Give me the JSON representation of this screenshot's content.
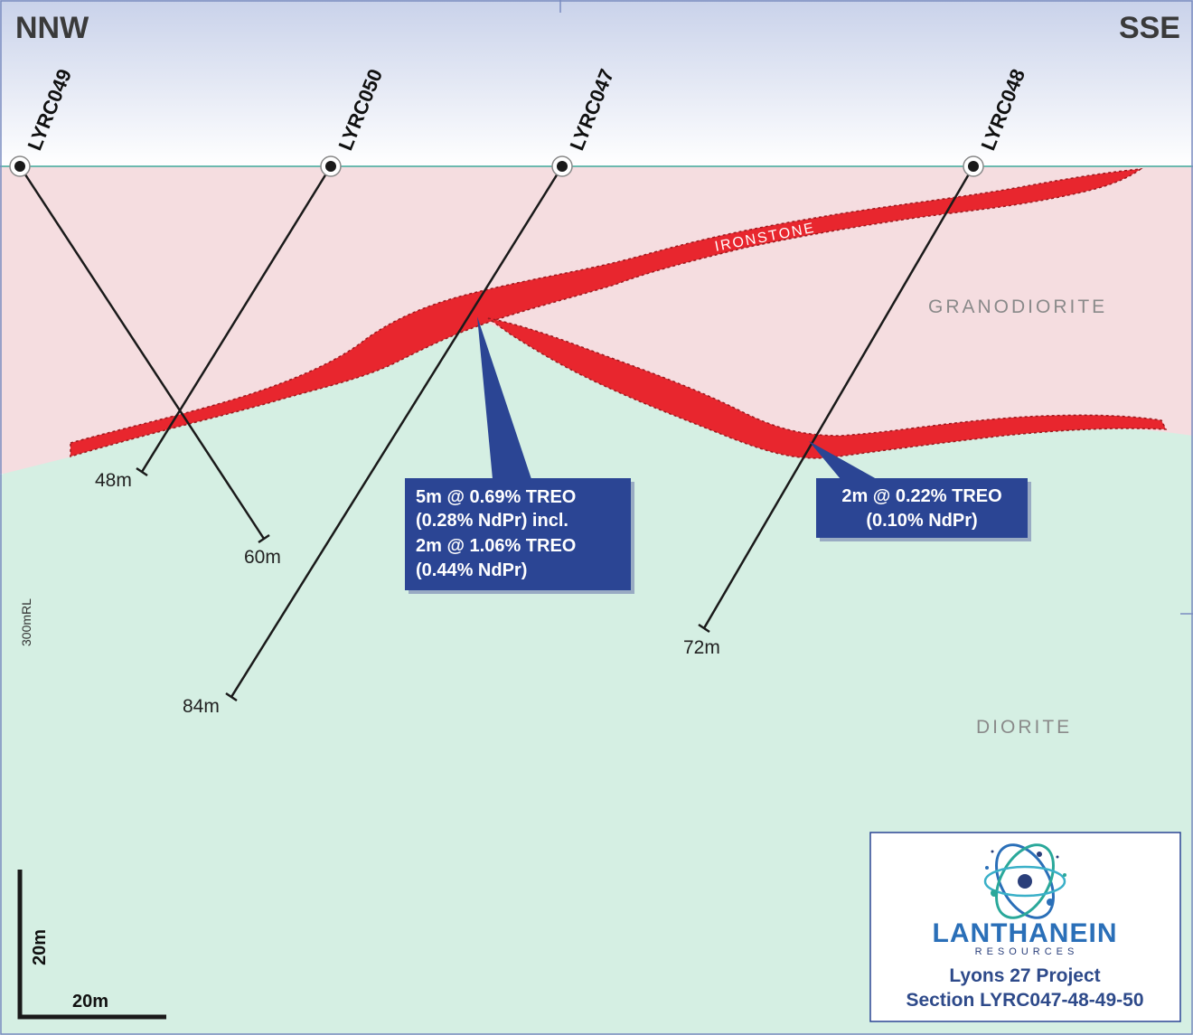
{
  "direction": {
    "left": "NNW",
    "right": "SSE"
  },
  "holes": [
    {
      "id": "LYRC049",
      "depth": "48m"
    },
    {
      "id": "LYRC050",
      "depth": "60m"
    },
    {
      "id": "LYRC047",
      "depth": "84m"
    },
    {
      "id": "LYRC048",
      "depth": "72m"
    }
  ],
  "units": {
    "ironstone": "IRONSTONE",
    "granodiorite": "GRANODIORITE",
    "diorite": "DIORITE"
  },
  "rl_label": "300mRL",
  "scale": {
    "vertical": "20m",
    "horizontal": "20m"
  },
  "callouts": {
    "lyrc047": [
      "5m @ 0.69% TREO",
      "(0.28% NdPr) incl.",
      "2m @ 1.06% TREO",
      "(0.44% NdPr)"
    ],
    "lyrc048": [
      "2m @ 0.22% TREO",
      "(0.10% NdPr)"
    ]
  },
  "legend": {
    "brand": "LANTHANEIN",
    "brand_sub": "RESOURCES",
    "project": "Lyons 27 Project",
    "section": "Section LYRC047-48-49-50"
  },
  "colors": {
    "sky_top": "#c9d2ea",
    "granodiorite": "#f5dde0",
    "diorite": "#d5efe3",
    "ironstone": "#e8262e",
    "callout": "#2b4594"
  }
}
